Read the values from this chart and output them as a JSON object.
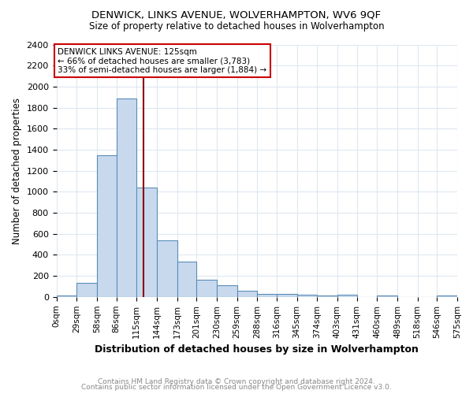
{
  "title": "DENWICK, LINKS AVENUE, WOLVERHAMPTON, WV6 9QF",
  "subtitle": "Size of property relative to detached houses in Wolverhampton",
  "xlabel": "Distribution of detached houses by size in Wolverhampton",
  "ylabel": "Number of detached properties",
  "bin_edges": [
    0,
    29,
    58,
    86,
    115,
    144,
    173,
    201,
    230,
    259,
    288,
    316,
    345,
    374,
    403,
    431,
    460,
    489,
    518,
    546,
    575
  ],
  "bar_values": [
    15,
    130,
    1350,
    1890,
    1040,
    540,
    335,
    165,
    110,
    60,
    30,
    25,
    20,
    15,
    20,
    0,
    15,
    0,
    0,
    15
  ],
  "bar_color": "#c8d9ee",
  "bar_edge_color": "#5b8db8",
  "ylim": [
    0,
    2400
  ],
  "yticks": [
    0,
    200,
    400,
    600,
    800,
    1000,
    1200,
    1400,
    1600,
    1800,
    2000,
    2200,
    2400
  ],
  "vline_x": 125,
  "vline_color": "#8b0000",
  "annotation_title": "DENWICK LINKS AVENUE: 125sqm",
  "annotation_line1": "← 66% of detached houses are smaller (3,783)",
  "annotation_line2": "33% of semi-detached houses are larger (1,884) →",
  "annotation_box_color": "#ffffff",
  "annotation_box_edge": "#cc0000",
  "footer1": "Contains HM Land Registry data © Crown copyright and database right 2024.",
  "footer2": "Contains public sector information licensed under the Open Government Licence v3.0.",
  "background_color": "#ffffff",
  "grid_color": "#dde8f0"
}
